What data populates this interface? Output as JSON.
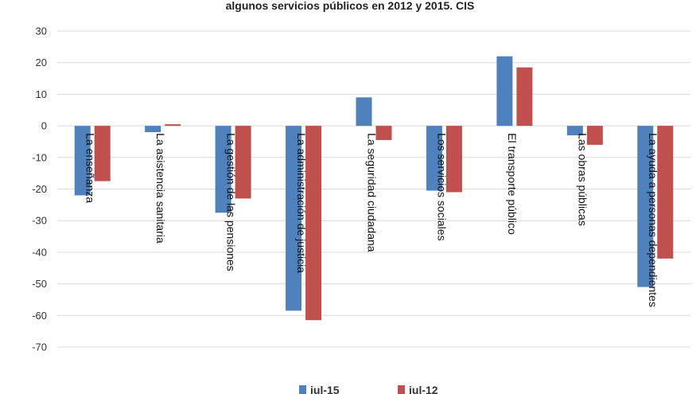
{
  "chart_data": {
    "type": "bar",
    "title": "algunos servicios públicos en 2012 y 2015. CIS",
    "categories": [
      "La enseñanza",
      "La asistencia sanitaria",
      "La gestión de las pensiones",
      "La administración de justicia",
      "La seguridad ciudadana",
      "Los servicios sociales",
      "El transporte público",
      "Las obras públicas",
      "La ayuda a personas dependientes"
    ],
    "series": [
      {
        "name": "jul-15",
        "color": "#4f81bd",
        "values": [
          -22,
          -2,
          -27.5,
          -58.5,
          9,
          -20.5,
          22,
          -3,
          -51
        ]
      },
      {
        "name": "jul-12",
        "color": "#c0504d",
        "values": [
          -17.5,
          0.5,
          -23,
          -61.5,
          -4.5,
          -21,
          18.5,
          -6,
          -42
        ]
      }
    ],
    "ylim": [
      -70,
      30
    ],
    "yticks": [
      30,
      20,
      10,
      0,
      -10,
      -20,
      -30,
      -40,
      -50,
      -60,
      -70
    ],
    "grid": true,
    "legend": "bottom"
  }
}
